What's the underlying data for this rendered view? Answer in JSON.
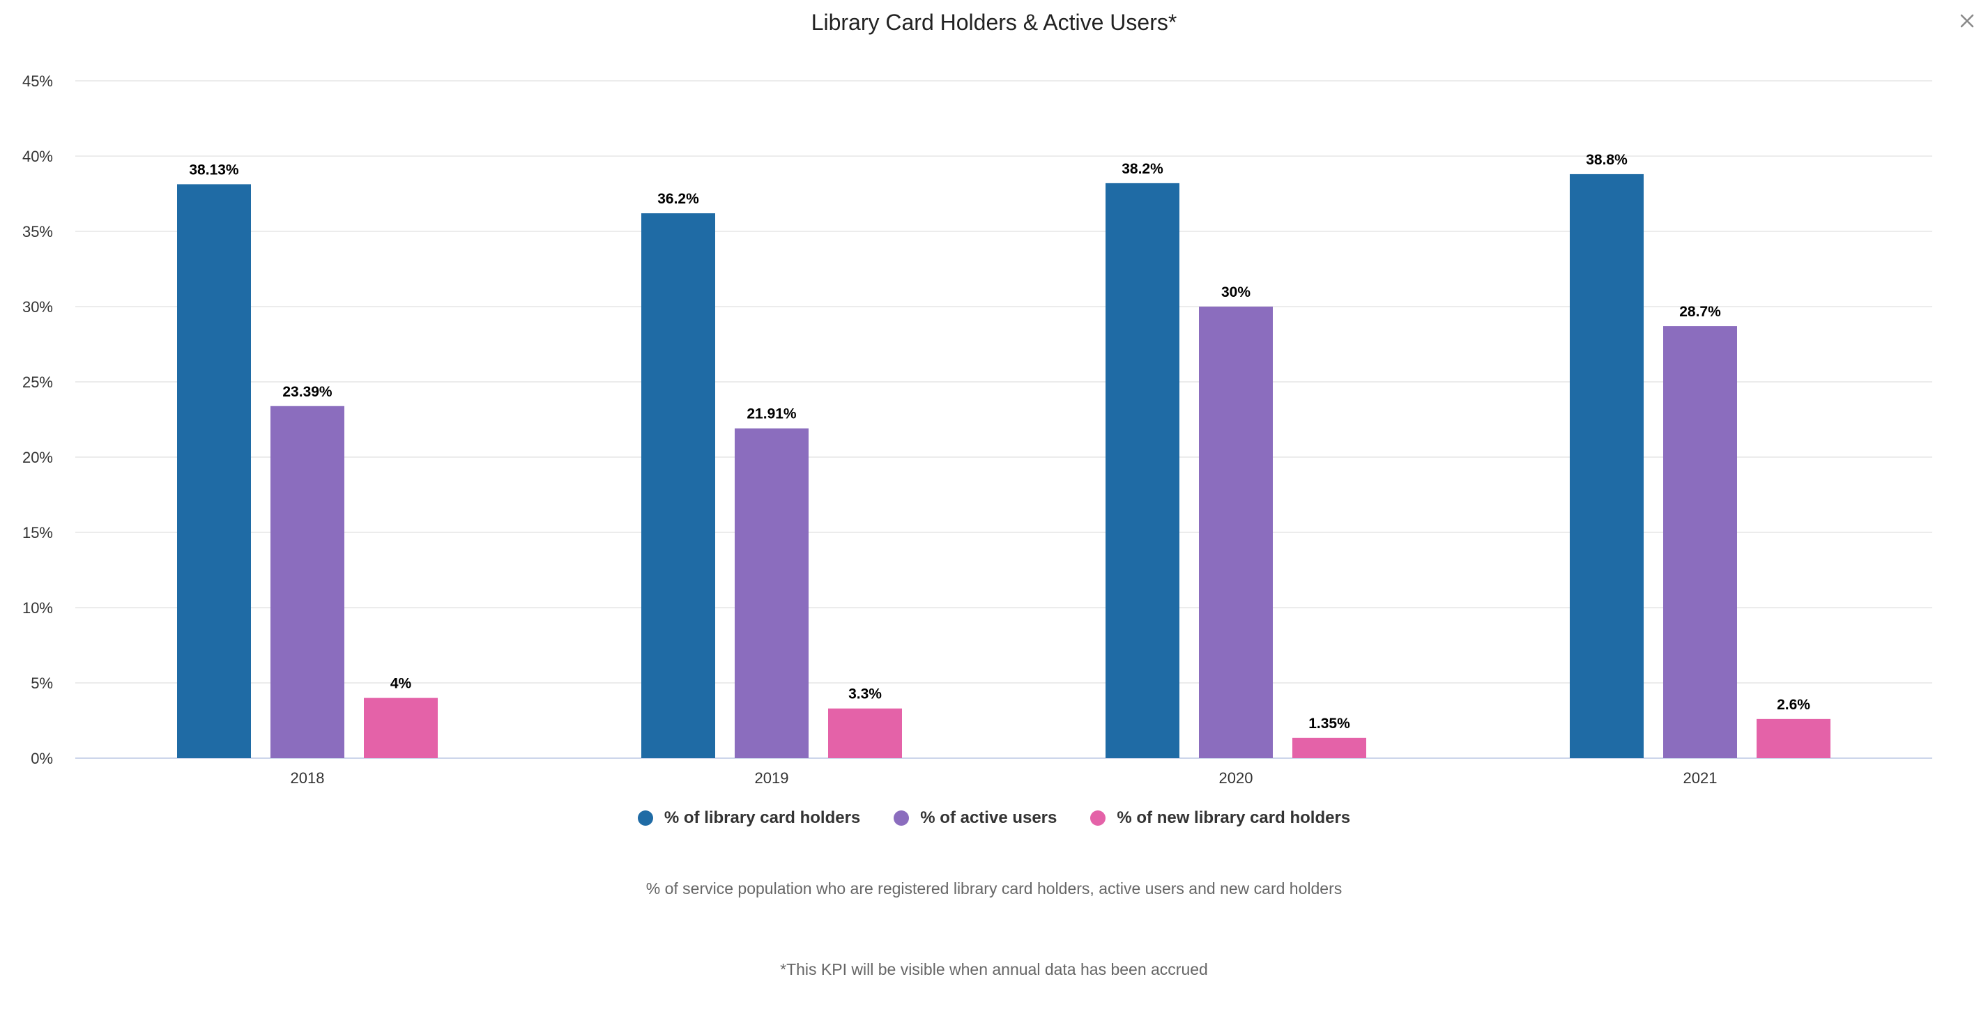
{
  "title": "Library Card Holders & Active Users*",
  "subtitle": "% of service population who are registered library card holders, active users and new card holders",
  "footnote": "*This KPI will be visible when annual data has been accrued",
  "close_icon": "close-icon",
  "colors": {
    "grid": "#e6e6e6",
    "axis": "#ccd6eb",
    "card_holders": "#1f6ba5",
    "active_users": "#8b6dbe",
    "new_card_holders": "#e462a8"
  },
  "legend": [
    {
      "label": "% of library card holders",
      "color": "#1f6ba5"
    },
    {
      "label": "% of active users",
      "color": "#8b6dbe"
    },
    {
      "label": "% of new library card holders",
      "color": "#e462a8"
    }
  ],
  "chart_data": {
    "type": "bar",
    "title": "Library Card Holders & Active Users*",
    "xlabel": "",
    "ylabel": "",
    "categories": [
      "2018",
      "2019",
      "2020",
      "2021"
    ],
    "ylim": [
      0,
      45
    ],
    "yticks": [
      0,
      5,
      10,
      15,
      20,
      25,
      30,
      35,
      40,
      45
    ],
    "ytick_labels": [
      "0%",
      "5%",
      "10%",
      "15%",
      "20%",
      "25%",
      "30%",
      "35%",
      "40%",
      "45%"
    ],
    "grid": true,
    "legend_position": "bottom-center",
    "series": [
      {
        "name": "% of library card holders",
        "color": "#1f6ba5",
        "values": [
          38.13,
          36.2,
          38.2,
          38.8
        ],
        "labels": [
          "38.13%",
          "36.2%",
          "38.2%",
          "38.8%"
        ]
      },
      {
        "name": "% of active users",
        "color": "#8b6dbe",
        "values": [
          23.39,
          21.91,
          30,
          28.7
        ],
        "labels": [
          "23.39%",
          "21.91%",
          "30%",
          "28.7%"
        ]
      },
      {
        "name": "% of new library card holders",
        "color": "#e462a8",
        "values": [
          4,
          3.3,
          1.35,
          2.6
        ],
        "labels": [
          "4%",
          "3.3%",
          "1.35%",
          "2.6%"
        ]
      }
    ]
  }
}
